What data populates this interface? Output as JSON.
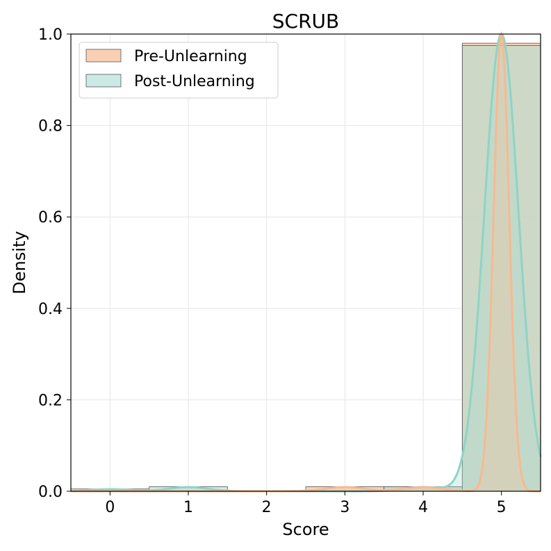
{
  "chart_data": {
    "type": "bar",
    "title": "SCRUB",
    "xlabel": "Score",
    "ylabel": "Density",
    "categories": [
      "0",
      "1",
      "2",
      "3",
      "4",
      "5"
    ],
    "x": [
      0,
      1,
      2,
      3,
      4,
      5
    ],
    "xlim": [
      -0.5,
      5.5
    ],
    "ylim": [
      0,
      1.0
    ],
    "yticks": [
      "0.0",
      "0.2",
      "0.4",
      "0.6",
      "0.8",
      "1.0"
    ],
    "grid": true,
    "legend_position": "top-left",
    "series": [
      {
        "name": "Pre-Unlearning",
        "values": [
          0.0,
          0.0,
          0.0,
          0.01,
          0.01,
          0.98
        ],
        "color": "#f8c4a0",
        "line_color": "#f7b98f",
        "kde_center": 5,
        "kde_sigma": 0.1
      },
      {
        "name": "Post-Unlearning",
        "values": [
          0.005,
          0.01,
          0.0,
          0.0,
          0.01,
          0.975
        ],
        "color": "#a9dcd2",
        "line_color": "#8ed4c6",
        "kde_center": 5,
        "kde_sigma": 0.22
      }
    ]
  }
}
